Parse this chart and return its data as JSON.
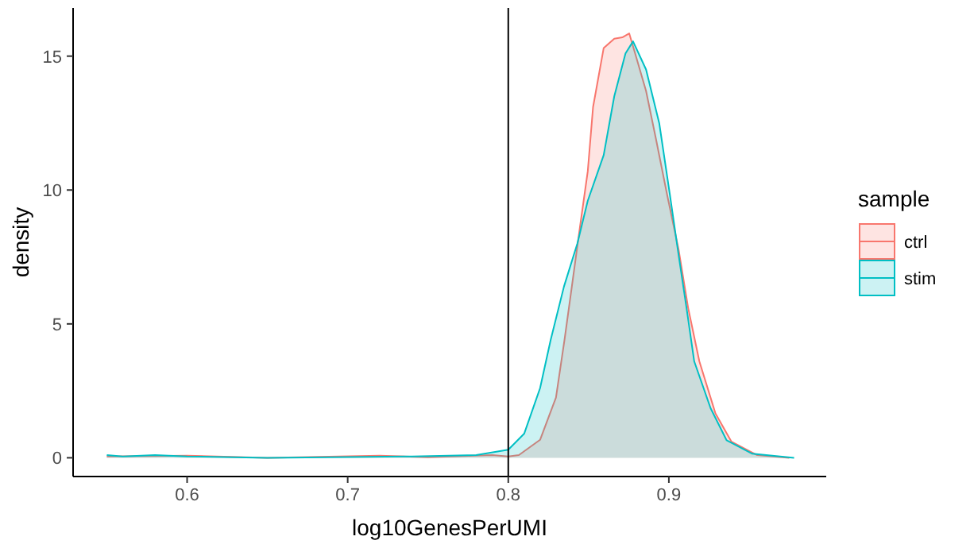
{
  "chart_data": {
    "type": "area",
    "xlabel": "log10GenesPerUMI",
    "ylabel": "density",
    "legend_title": "sample",
    "legend": "right",
    "grid": false,
    "xlim": [
      0.529,
      0.998
    ],
    "ylim": [
      -0.7,
      16.8
    ],
    "xticks": [
      0.6,
      0.7,
      0.8,
      0.9
    ],
    "yticks": [
      0,
      5,
      10,
      15
    ],
    "ref_lines": [
      {
        "axis": "x",
        "value": 0.8,
        "color": "#000000"
      }
    ],
    "series": [
      {
        "name": "ctrl",
        "color": "#f8766d",
        "x": [
          0.55,
          0.6,
          0.65,
          0.72,
          0.75,
          0.79,
          0.8,
          0.8066,
          0.8198,
          0.8297,
          0.835,
          0.8396,
          0.8446,
          0.8495,
          0.8528,
          0.8594,
          0.866,
          0.871,
          0.8753,
          0.879,
          0.8858,
          0.892,
          0.899,
          0.906,
          0.912,
          0.919,
          0.929,
          0.939,
          0.955,
          0.975
        ],
        "values": [
          0.05,
          0.08,
          0,
          0.08,
          0.02,
          0.1,
          0.05,
          0.1,
          0.67,
          2.25,
          4.4,
          6.4,
          8.6,
          10.7,
          13.1,
          15.3,
          15.65,
          15.7,
          15.85,
          15.1,
          13.7,
          11.9,
          9.8,
          7.8,
          5.6,
          3.6,
          1.66,
          0.6,
          0.1,
          0
        ]
      },
      {
        "name": "stim",
        "color": "#00bfc4",
        "x": [
          0.55,
          0.56,
          0.58,
          0.6,
          0.65,
          0.74,
          0.78,
          0.8,
          0.8099,
          0.8198,
          0.8264,
          0.8347,
          0.843,
          0.8495,
          0.8594,
          0.866,
          0.873,
          0.8777,
          0.8858,
          0.894,
          0.9007,
          0.906,
          0.911,
          0.9158,
          0.926,
          0.936,
          0.952,
          0.978
        ],
        "values": [
          0.1,
          0.05,
          0.1,
          0.05,
          0,
          0.05,
          0.1,
          0.3,
          0.9,
          2.6,
          4.4,
          6.4,
          8,
          9.6,
          11.3,
          13.5,
          15.1,
          15.55,
          14.5,
          12.5,
          9.8,
          7.6,
          5.6,
          3.6,
          1.85,
          0.65,
          0.15,
          0
        ]
      }
    ]
  }
}
